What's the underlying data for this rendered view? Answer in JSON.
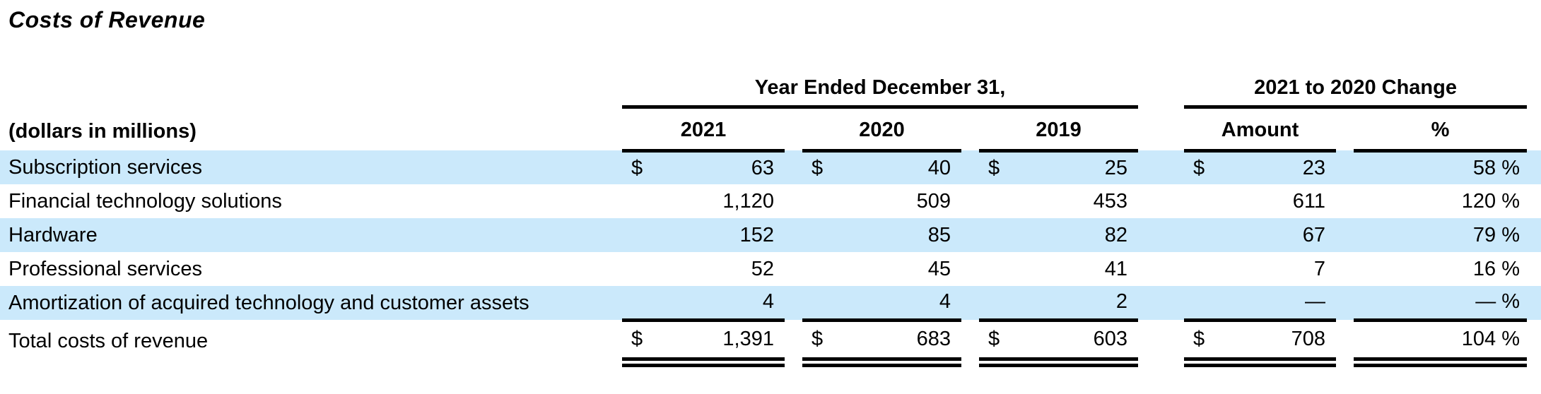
{
  "page": {
    "title": "Costs of Revenue"
  },
  "colors": {
    "row_highlight": "#cbe9fb",
    "rule": "#000000",
    "text": "#000000",
    "background": "#ffffff"
  },
  "table": {
    "units_label": "(dollars in millions)",
    "groups": [
      {
        "label": "Year Ended December 31,",
        "columns": [
          "2021",
          "2020",
          "2019"
        ]
      },
      {
        "label": "2021 to 2020 Change",
        "columns": [
          "Amount",
          "%"
        ]
      }
    ],
    "rows": [
      {
        "label": "Subscription services",
        "cur": "$",
        "y2021": "63",
        "y2020": "40",
        "y2019": "25",
        "amount_cur": "$",
        "amount": "23",
        "pct": "58 %",
        "highlight": true
      },
      {
        "label": "Financial technology solutions",
        "cur": "",
        "y2021": "1,120",
        "y2020": "509",
        "y2019": "453",
        "amount_cur": "",
        "amount": "611",
        "pct": "120 %",
        "highlight": false
      },
      {
        "label": "Hardware",
        "cur": "",
        "y2021": "152",
        "y2020": "85",
        "y2019": "82",
        "amount_cur": "",
        "amount": "67",
        "pct": "79 %",
        "highlight": true
      },
      {
        "label": "Professional services",
        "cur": "",
        "y2021": "52",
        "y2020": "45",
        "y2019": "41",
        "amount_cur": "",
        "amount": "7",
        "pct": "16 %",
        "highlight": false
      },
      {
        "label": "Amortization of acquired technology and customer assets",
        "cur": "",
        "y2021": "4",
        "y2020": "4",
        "y2019": "2",
        "amount_cur": "",
        "amount": "—",
        "pct": "— %",
        "highlight": true
      }
    ],
    "total": {
      "label": "Total costs of revenue",
      "cur": "$",
      "y2021": "1,391",
      "y2020": "683",
      "y2019": "603",
      "amount_cur": "$",
      "amount": "708",
      "pct": "104 %"
    }
  }
}
